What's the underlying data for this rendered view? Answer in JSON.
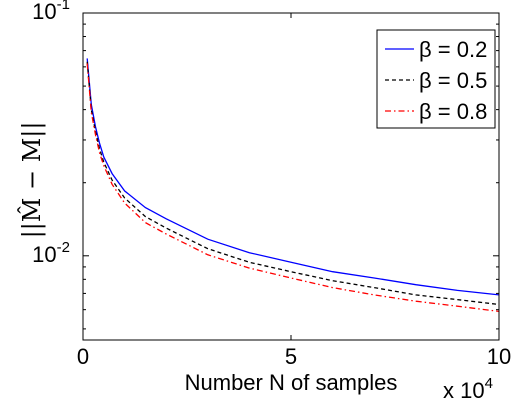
{
  "chart_data": {
    "type": "line",
    "xlabel": "Number N of samples",
    "x_multiplier": "x 10",
    "x_multiplier_exp": "4",
    "ylabel": "||M̂ − M||",
    "yscale": "log",
    "xlim": [
      0,
      100000
    ],
    "ylim": [
      0.0045,
      0.1
    ],
    "x_ticks": [
      {
        "value": 0,
        "label": "0"
      },
      {
        "value": 50000,
        "label": "5"
      },
      {
        "value": 100000,
        "label": "10"
      }
    ],
    "y_ticks": [
      {
        "value": 0.1,
        "base": "10",
        "exp": "-1"
      },
      {
        "value": 0.01,
        "base": "10",
        "exp": "-2"
      }
    ],
    "legend_position": "top-right",
    "grid": false,
    "x": [
      1000,
      2000,
      3000,
      4000,
      5000,
      7000,
      10000,
      15000,
      20000,
      30000,
      40000,
      50000,
      60000,
      70000,
      80000,
      90000,
      100000
    ],
    "series": [
      {
        "name": "β = 0.2",
        "color": "#0000ff",
        "dash": "solid",
        "values": [
          0.065,
          0.042,
          0.034,
          0.029,
          0.0255,
          0.0218,
          0.0185,
          0.0158,
          0.0142,
          0.0117,
          0.0103,
          0.0094,
          0.0086,
          0.0081,
          0.0076,
          0.0072,
          0.0069
        ]
      },
      {
        "name": "β = 0.5",
        "color": "#000000",
        "dash": "4,3",
        "values": [
          0.063,
          0.04,
          0.0325,
          0.0275,
          0.0243,
          0.0205,
          0.0173,
          0.0145,
          0.013,
          0.0107,
          0.0094,
          0.0086,
          0.0079,
          0.0074,
          0.0069,
          0.0066,
          0.0063
        ]
      },
      {
        "name": "β = 0.8",
        "color": "#ff0000",
        "dash": "6,3,1.5,3",
        "values": [
          0.062,
          0.039,
          0.0315,
          0.0265,
          0.0235,
          0.0197,
          0.0165,
          0.0137,
          0.0123,
          0.0101,
          0.0089,
          0.0081,
          0.0074,
          0.0069,
          0.0065,
          0.0062,
          0.0059
        ]
      }
    ]
  }
}
